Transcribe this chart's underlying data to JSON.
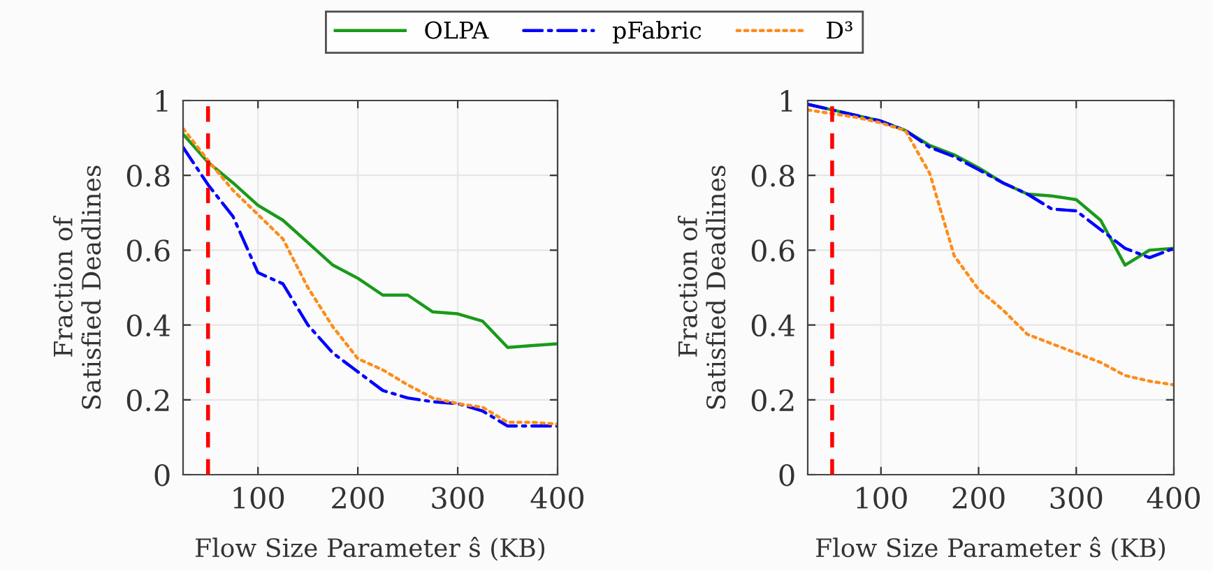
{
  "chart_data": [
    {
      "type": "line",
      "xlabel": "Flow Size Parameter ŝ (KB)",
      "ylabel": "Fraction of\nSatisfied Deadlines",
      "legend": "top",
      "x": [
        25,
        50,
        75,
        100,
        125,
        150,
        175,
        200,
        225,
        250,
        275,
        300,
        325,
        350,
        375,
        400
      ],
      "xlim": [
        25,
        400
      ],
      "xticks": [
        100,
        200,
        300,
        400
      ],
      "ylim": [
        0,
        1
      ],
      "yticks": [
        0,
        0.2,
        0.4,
        0.6,
        0.8,
        1
      ],
      "grid": true,
      "ref_lines": [
        {
          "axis": "x",
          "value": 50,
          "color": "#ff0000",
          "line_style": "dashed"
        }
      ],
      "series": [
        {
          "name": "OLPA",
          "color": "#1a9a1a",
          "line_style": "solid",
          "values": [
            0.91,
            0.835,
            0.78,
            0.72,
            0.68,
            0.62,
            0.56,
            0.525,
            0.48,
            0.48,
            0.435,
            0.43,
            0.41,
            0.34,
            0.345,
            0.35
          ]
        },
        {
          "name": "pFabric",
          "color": "#0000ff",
          "line_style": "dashdot",
          "values": [
            0.875,
            0.775,
            0.69,
            0.54,
            0.51,
            0.4,
            0.325,
            0.275,
            0.225,
            0.205,
            0.195,
            0.19,
            0.17,
            0.13,
            0.13,
            0.13
          ]
        },
        {
          "name": "D³",
          "color": "#ff8c1a",
          "line_style": "dotted",
          "values": [
            0.925,
            0.84,
            0.76,
            0.695,
            0.63,
            0.5,
            0.395,
            0.31,
            0.28,
            0.24,
            0.205,
            0.19,
            0.18,
            0.14,
            0.14,
            0.135
          ]
        }
      ]
    },
    {
      "type": "line",
      "xlabel": "Flow Size Parameter ŝ (KB)",
      "ylabel": "Fraction of\nSatisfied Deadlines",
      "x": [
        25,
        50,
        75,
        100,
        125,
        150,
        175,
        200,
        225,
        250,
        275,
        300,
        325,
        350,
        375,
        400
      ],
      "xlim": [
        25,
        400
      ],
      "xticks": [
        100,
        200,
        300,
        400
      ],
      "ylim": [
        0,
        1
      ],
      "yticks": [
        0,
        0.2,
        0.4,
        0.6,
        0.8,
        1
      ],
      "grid": true,
      "ref_lines": [
        {
          "axis": "x",
          "value": 50,
          "color": "#ff0000",
          "line_style": "dashed"
        }
      ],
      "series": [
        {
          "color": "#1a9a1a",
          "line_style": "solid",
          "values": [
            0.99,
            0.975,
            0.96,
            0.945,
            0.92,
            0.88,
            0.855,
            0.82,
            0.78,
            0.75,
            0.745,
            0.735,
            0.68,
            0.56,
            0.6,
            0.605
          ]
        },
        {
          "color": "#0000ff",
          "line_style": "dashdot",
          "values": [
            0.99,
            0.975,
            0.96,
            0.945,
            0.92,
            0.875,
            0.85,
            0.815,
            0.78,
            0.75,
            0.71,
            0.705,
            0.655,
            0.605,
            0.58,
            0.605
          ]
        },
        {
          "color": "#ff8c1a",
          "line_style": "dotted",
          "values": [
            0.975,
            0.965,
            0.955,
            0.94,
            0.92,
            0.805,
            0.585,
            0.495,
            0.44,
            0.375,
            0.35,
            0.325,
            0.3,
            0.265,
            0.25,
            0.24
          ]
        }
      ]
    }
  ]
}
